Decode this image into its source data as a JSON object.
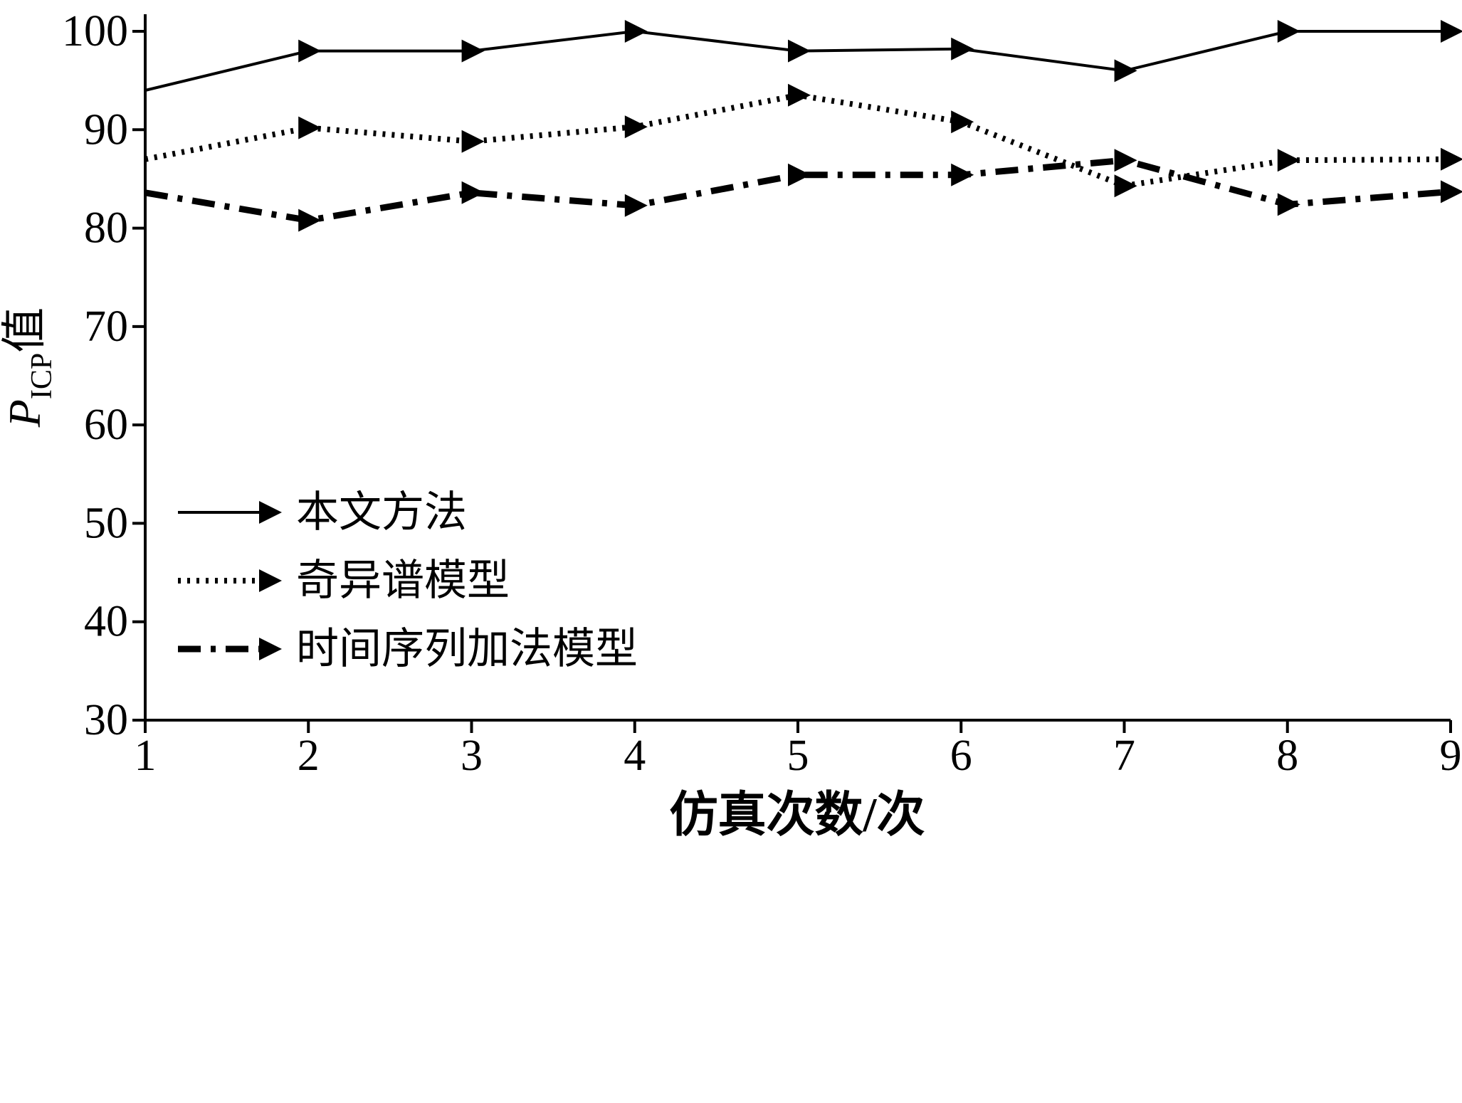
{
  "figure": {
    "background": "#ffffff",
    "line_color": "#000000"
  },
  "chart_data": {
    "type": "line",
    "title": "",
    "xlabel": "仿真次数/次",
    "ylabel_prefix": "P",
    "ylabel_sub": "ICP",
    "ylabel_suffix": "值",
    "x": [
      1,
      2,
      3,
      4,
      5,
      6,
      7,
      8,
      9
    ],
    "xlim": [
      1,
      9
    ],
    "ylim": [
      30,
      100
    ],
    "xticks": [
      1,
      2,
      3,
      4,
      5,
      6,
      7,
      8,
      9
    ],
    "yticks": [
      30,
      40,
      50,
      60,
      70,
      80,
      90,
      100
    ],
    "grid": false,
    "legend_position": "lower-left-inside",
    "marker": "right-triangle",
    "color": "#000000",
    "series": [
      {
        "name": "本文方法",
        "style": "solid",
        "values": [
          94,
          98,
          98,
          100,
          98,
          98.2,
          96,
          100,
          100
        ]
      },
      {
        "name": "奇异谱模型",
        "style": "dotted",
        "values": [
          87,
          90.2,
          88.8,
          90.3,
          93.5,
          90.8,
          84.3,
          86.9,
          87
        ]
      },
      {
        "name": "时间序列加法模型",
        "style": "dashdot",
        "values": [
          83.6,
          80.8,
          83.6,
          82.3,
          85.4,
          85.4,
          86.9,
          82.4,
          83.7
        ]
      }
    ]
  }
}
